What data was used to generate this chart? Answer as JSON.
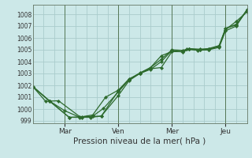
{
  "xlabel": "Pression niveau de la mer( hPa )",
  "bg_color": "#cce8e8",
  "grid_color": "#aacccc",
  "line_color": "#2d6a2d",
  "ylim": [
    998.8,
    1008.8
  ],
  "yticks": [
    999,
    1000,
    1001,
    1002,
    1003,
    1004,
    1005,
    1006,
    1007,
    1008
  ],
  "xlim_days": [
    0,
    5.0
  ],
  "day_ticks": [
    0.75,
    2.0,
    3.25,
    4.5
  ],
  "day_labels": [
    "Mar",
    "Ven",
    "Mer",
    "Jeu"
  ],
  "day_vlines": [
    0.75,
    2.0,
    3.25,
    4.5
  ],
  "lines": [
    [
      [
        0.0,
        1001.9
      ],
      [
        0.4,
        1000.65
      ],
      [
        0.75,
        999.85
      ],
      [
        1.1,
        999.3
      ],
      [
        1.35,
        999.3
      ],
      [
        1.6,
        999.4
      ],
      [
        2.0,
        1001.15
      ],
      [
        2.25,
        1002.4
      ],
      [
        2.5,
        1003.0
      ],
      [
        2.75,
        1003.4
      ],
      [
        3.0,
        1003.5
      ],
      [
        3.25,
        1004.85
      ],
      [
        3.5,
        1004.85
      ],
      [
        3.6,
        1005.05
      ],
      [
        3.85,
        1004.95
      ],
      [
        4.1,
        1005.0
      ],
      [
        4.35,
        1005.2
      ],
      [
        4.5,
        1006.6
      ],
      [
        4.75,
        1007.0
      ],
      [
        5.0,
        1008.4
      ]
    ],
    [
      [
        0.0,
        1001.9
      ],
      [
        0.4,
        1000.65
      ],
      [
        0.85,
        999.3
      ],
      [
        1.15,
        999.3
      ],
      [
        1.4,
        999.4
      ],
      [
        1.65,
        1000.05
      ],
      [
        2.0,
        1001.45
      ],
      [
        2.25,
        1002.5
      ],
      [
        2.5,
        1003.0
      ],
      [
        2.75,
        1003.35
      ],
      [
        3.0,
        1004.0
      ],
      [
        3.25,
        1004.95
      ],
      [
        3.5,
        1004.8
      ],
      [
        3.65,
        1005.05
      ],
      [
        3.9,
        1005.0
      ],
      [
        4.1,
        1005.05
      ],
      [
        4.35,
        1005.3
      ],
      [
        4.5,
        1006.7
      ],
      [
        4.75,
        1007.4
      ],
      [
        5.0,
        1008.2
      ]
    ],
    [
      [
        0.0,
        1001.9
      ],
      [
        0.4,
        1000.65
      ],
      [
        0.85,
        999.3
      ],
      [
        1.15,
        999.35
      ],
      [
        1.4,
        999.5
      ],
      [
        1.7,
        1001.0
      ],
      [
        2.0,
        1001.6
      ],
      [
        2.25,
        1002.55
      ],
      [
        2.5,
        1003.0
      ],
      [
        2.75,
        1003.5
      ],
      [
        3.0,
        1004.2
      ],
      [
        3.25,
        1005.0
      ],
      [
        3.5,
        1004.95
      ],
      [
        3.65,
        1005.1
      ],
      [
        3.9,
        1005.05
      ],
      [
        4.1,
        1005.1
      ],
      [
        4.35,
        1005.35
      ],
      [
        4.5,
        1006.8
      ],
      [
        4.75,
        1007.1
      ],
      [
        5.0,
        1008.3
      ]
    ],
    [
      [
        0.0,
        1001.9
      ],
      [
        0.3,
        1000.65
      ],
      [
        0.6,
        1000.7
      ],
      [
        1.1,
        999.35
      ],
      [
        1.6,
        999.4
      ],
      [
        2.0,
        1001.55
      ],
      [
        2.25,
        1002.5
      ],
      [
        2.5,
        1003.05
      ],
      [
        2.75,
        1003.5
      ],
      [
        3.0,
        1004.5
      ],
      [
        3.25,
        1004.85
      ],
      [
        3.5,
        1004.85
      ],
      [
        3.65,
        1005.05
      ],
      [
        3.9,
        1005.0
      ],
      [
        4.1,
        1005.0
      ],
      [
        4.35,
        1005.3
      ],
      [
        4.5,
        1006.8
      ],
      [
        4.75,
        1007.15
      ],
      [
        5.0,
        1008.35
      ]
    ]
  ]
}
